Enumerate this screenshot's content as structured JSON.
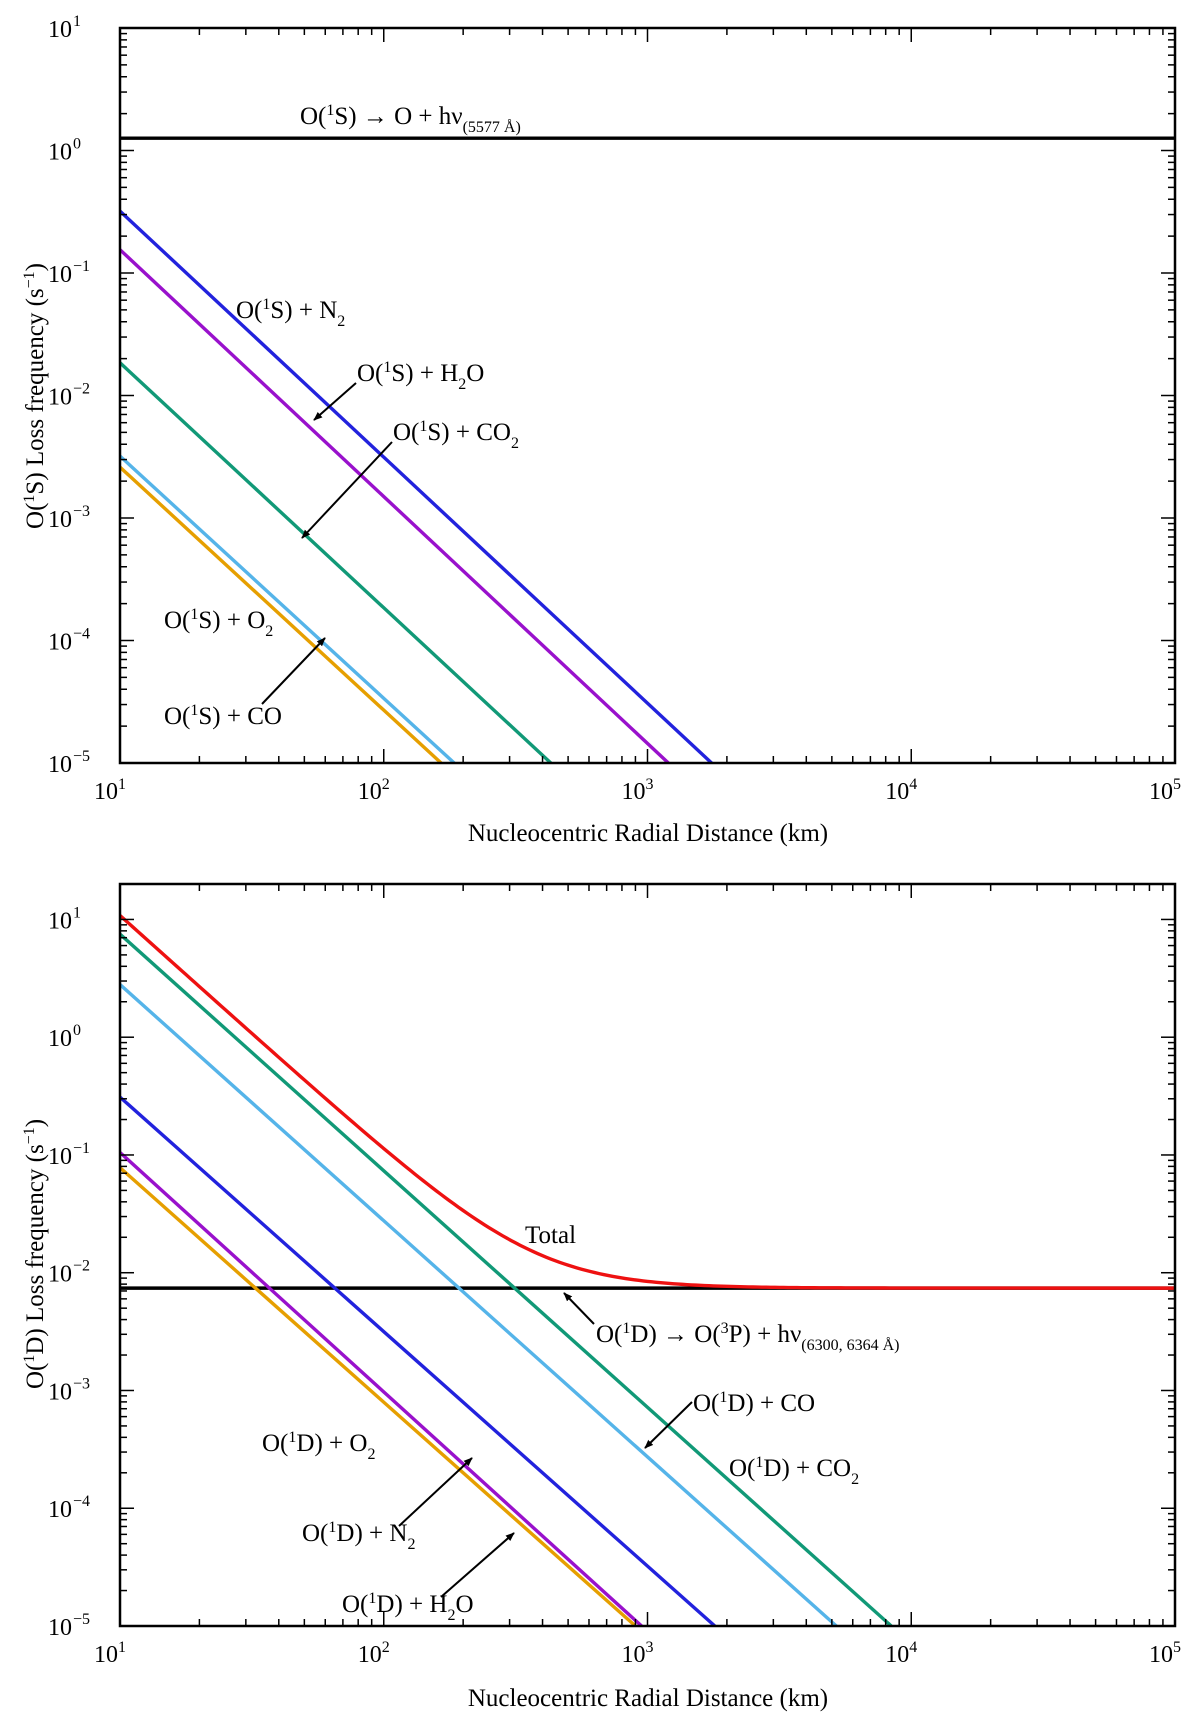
{
  "chart_data": [
    {
      "type": "line",
      "xscale": "log",
      "yscale": "log",
      "xlim": [
        10,
        100000
      ],
      "ylim": [
        1e-05,
        10
      ],
      "xlabel": "Nucleocentric Radial Distance (km)",
      "ylabel": "O(¹S) Loss frequency (s⁻¹)",
      "ylabel_parts": {
        "prefix": "O(",
        "sup1": "1",
        "mid": "S) Loss frequency (s",
        "sup2": "−1",
        "suffix": ")"
      },
      "x_ticks": [
        {
          "base": "10",
          "exp": "1",
          "value": 10
        },
        {
          "base": "10",
          "exp": "2",
          "value": 100
        },
        {
          "base": "10",
          "exp": "3",
          "value": 1000
        },
        {
          "base": "10",
          "exp": "4",
          "value": 10000
        },
        {
          "base": "10",
          "exp": "5",
          "value": 100000
        }
      ],
      "y_ticks": [
        {
          "base": "10",
          "exp": "−5",
          "value": 1e-05
        },
        {
          "base": "10",
          "exp": "−4",
          "value": 0.0001
        },
        {
          "base": "10",
          "exp": "−3",
          "value": 0.001
        },
        {
          "base": "10",
          "exp": "−2",
          "value": 0.01
        },
        {
          "base": "10",
          "exp": "−1",
          "value": 0.1
        },
        {
          "base": "10",
          "exp": "0",
          "value": 1
        },
        {
          "base": "10",
          "exp": "1",
          "value": 10
        }
      ],
      "series": [
        {
          "name": "O(¹S) → O + hν (5577 Å)",
          "color": "#000000",
          "kind": "constant",
          "value": 1.26
        },
        {
          "name": "O(¹S) + N₂",
          "color": "#2222dd",
          "kind": "power",
          "x": [
            10,
            1750
          ],
          "y": [
            0.32,
            1e-05
          ]
        },
        {
          "name": "O(¹S) + H₂O",
          "color": "#9911cc",
          "kind": "power",
          "x": [
            10,
            1200
          ],
          "y": [
            0.155,
            1e-05
          ]
        },
        {
          "name": "O(¹S) + CO₂",
          "color": "#119977",
          "kind": "power",
          "x": [
            10,
            430
          ],
          "y": [
            0.0185,
            1e-05
          ]
        },
        {
          "name": "O(¹S) + O₂",
          "color": "#55b4e9",
          "kind": "power",
          "x": [
            10,
            185
          ],
          "y": [
            0.0032,
            1e-05
          ]
        },
        {
          "name": "O(¹S) + CO",
          "color": "#e69f00",
          "kind": "power",
          "x": [
            10,
            165
          ],
          "y": [
            0.0026,
            1e-05
          ]
        }
      ],
      "annotations": {
        "radiative": {
          "pre": "O(",
          "sup": "1",
          "mid": "S) → O + hν",
          "sub": "(5577 Å)"
        },
        "n2": {
          "pre": "O(",
          "sup": "1",
          "mid": "S) + N",
          "sub": "2"
        },
        "h2o": {
          "pre": "O(",
          "sup": "1",
          "mid": "S) + H",
          "sub": "2",
          "post": "O"
        },
        "co2": {
          "pre": "O(",
          "sup": "1",
          "mid": "S) + CO",
          "sub": "2"
        },
        "o2": {
          "pre": "O(",
          "sup": "1",
          "mid": "S) + O",
          "sub": "2"
        },
        "co": {
          "pre": "O(",
          "sup": "1",
          "mid": "S) + CO"
        }
      }
    },
    {
      "type": "line",
      "xscale": "log",
      "yscale": "log",
      "xlim": [
        10,
        100000
      ],
      "ylim": [
        1e-05,
        20
      ],
      "xlabel": "Nucleocentric Radial Distance (km)",
      "ylabel": "O(¹D) Loss frequency (s⁻¹)",
      "ylabel_parts": {
        "prefix": "O(",
        "sup1": "1",
        "mid": "D) Loss frequency (s",
        "sup2": "−1",
        "suffix": ")"
      },
      "x_ticks": [
        {
          "base": "10",
          "exp": "1",
          "value": 10
        },
        {
          "base": "10",
          "exp": "2",
          "value": 100
        },
        {
          "base": "10",
          "exp": "3",
          "value": 1000
        },
        {
          "base": "10",
          "exp": "4",
          "value": 10000
        },
        {
          "base": "10",
          "exp": "5",
          "value": 100000
        }
      ],
      "y_ticks": [
        {
          "base": "10",
          "exp": "−5",
          "value": 1e-05
        },
        {
          "base": "10",
          "exp": "−4",
          "value": 0.0001
        },
        {
          "base": "10",
          "exp": "−3",
          "value": 0.001
        },
        {
          "base": "10",
          "exp": "−2",
          "value": 0.01
        },
        {
          "base": "10",
          "exp": "−1",
          "value": 0.1
        },
        {
          "base": "10",
          "exp": "0",
          "value": 1
        },
        {
          "base": "10",
          "exp": "1",
          "value": 10
        }
      ],
      "series": [
        {
          "name": "O(¹D) → O(³P) + hν (6300, 6364 Å)",
          "color": "#000000",
          "kind": "constant",
          "value": 0.0074
        },
        {
          "name": "Total",
          "color": "#ee1111",
          "kind": "total"
        },
        {
          "name": "O(¹D) + CO₂",
          "color": "#119977",
          "kind": "power",
          "x": [
            10,
            8400
          ],
          "y": [
            7.5,
            1e-05
          ]
        },
        {
          "name": "O(¹D) + CO",
          "color": "#55b4e9",
          "kind": "power",
          "x": [
            10,
            5200
          ],
          "y": [
            2.8,
            1e-05
          ]
        },
        {
          "name": "O(¹D) + N₂",
          "color": "#2222dd",
          "kind": "power",
          "x": [
            10,
            1800
          ],
          "y": [
            0.31,
            1e-05
          ]
        },
        {
          "name": "O(¹D) + H₂O",
          "color": "#9911cc",
          "kind": "power",
          "x": [
            10,
            950
          ],
          "y": [
            0.105,
            1e-05
          ]
        },
        {
          "name": "O(¹D) + O₂",
          "color": "#e69f00",
          "kind": "power",
          "x": [
            10,
            900
          ],
          "y": [
            0.078,
            1e-05
          ]
        }
      ],
      "annotations": {
        "total": {
          "text": "Total"
        },
        "radiative": {
          "pre": "O(",
          "sup": "1",
          "mid": "D) → O(",
          "sup2": "3",
          "mid2": "P) + hν",
          "sub": "(6300, 6364 Å)"
        },
        "co": {
          "pre": "O(",
          "sup": "1",
          "mid": "D) + CO"
        },
        "co2": {
          "pre": "O(",
          "sup": "1",
          "mid": "D) + CO",
          "sub": "2"
        },
        "o2": {
          "pre": "O(",
          "sup": "1",
          "mid": "D) + O",
          "sub": "2"
        },
        "n2": {
          "pre": "O(",
          "sup": "1",
          "mid": "D) + N",
          "sub": "2"
        },
        "h2o": {
          "pre": "O(",
          "sup": "1",
          "mid": "D) + H",
          "sub": "2",
          "post": "O"
        }
      }
    }
  ]
}
